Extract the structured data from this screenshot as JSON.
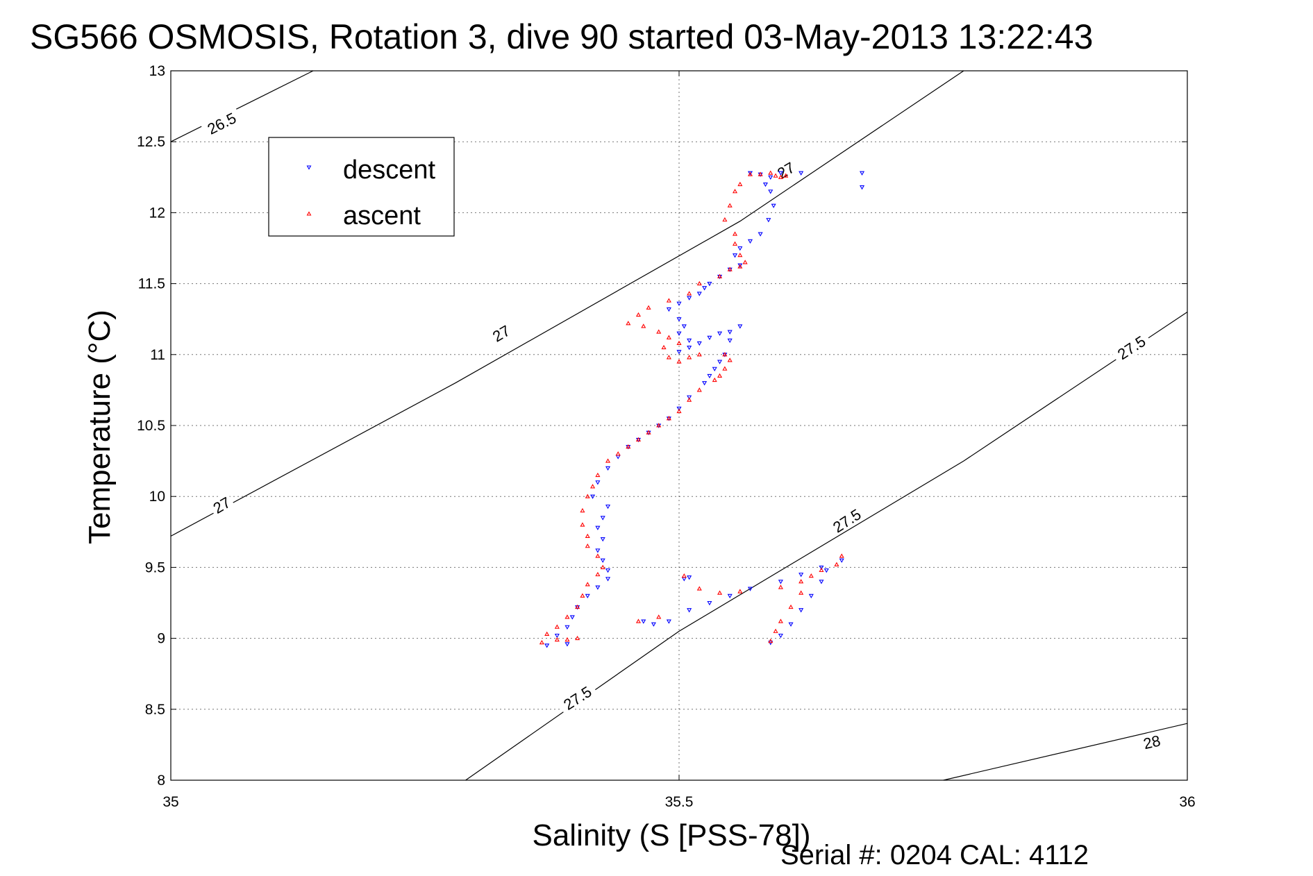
{
  "chart_data": {
    "type": "scatter",
    "title": "SG566 OSMOSIS, Rotation 3, dive 90 started 03-May-2013 13:22:43",
    "xlabel": "Salinity (S [PSS-78])",
    "ylabel": "Temperature (°C)",
    "xlim": [
      35,
      36
    ],
    "ylim": [
      8,
      13
    ],
    "x_ticks": [
      "35",
      "35.5",
      "36"
    ],
    "y_ticks": [
      "8",
      "8.5",
      "9",
      "9.5",
      "10",
      "10.5",
      "11",
      "11.5",
      "12",
      "12.5",
      "13"
    ],
    "grid": "dotted",
    "legend_position": "top-left",
    "footer": "Serial #: 0204  CAL: 4112",
    "density_contours": [
      {
        "label": "26.5",
        "points": [
          [
            35.0,
            12.5
          ],
          [
            35.14,
            13.0
          ]
        ]
      },
      {
        "label": "27",
        "points": [
          [
            35.0,
            9.72
          ],
          [
            35.28,
            10.8
          ],
          [
            35.56,
            11.94
          ],
          [
            35.78,
            13.0
          ]
        ]
      },
      {
        "label": "27.5",
        "points": [
          [
            35.29,
            8.0
          ],
          [
            35.5,
            9.05
          ],
          [
            35.78,
            10.25
          ],
          [
            36.0,
            11.3
          ]
        ]
      },
      {
        "label": "28",
        "points": [
          [
            35.76,
            8.0
          ],
          [
            36.0,
            8.4
          ]
        ]
      }
    ],
    "contour_label_positions": [
      {
        "label": "26.5",
        "x": 35.05,
        "y": 12.63
      },
      {
        "label": "27",
        "x": 35.05,
        "y": 9.94
      },
      {
        "label": "27",
        "x": 35.325,
        "y": 11.15
      },
      {
        "label": "27",
        "x": 35.605,
        "y": 12.3
      },
      {
        "label": "27.5",
        "x": 35.4,
        "y": 8.58
      },
      {
        "label": "27.5",
        "x": 35.665,
        "y": 9.83
      },
      {
        "label": "27.5",
        "x": 35.945,
        "y": 11.05
      },
      {
        "label": "28",
        "x": 35.965,
        "y": 8.27
      }
    ],
    "series": [
      {
        "name": "descent",
        "color": "#0000ff",
        "marker": "triangle-down",
        "points": [
          [
            35.68,
            12.18
          ],
          [
            35.68,
            12.28
          ],
          [
            35.57,
            12.28
          ],
          [
            35.6,
            12.28
          ],
          [
            35.62,
            12.28
          ],
          [
            35.58,
            12.27
          ],
          [
            35.59,
            12.25
          ],
          [
            35.585,
            12.2
          ],
          [
            35.59,
            12.15
          ],
          [
            35.593,
            12.05
          ],
          [
            35.588,
            11.95
          ],
          [
            35.58,
            11.85
          ],
          [
            35.57,
            11.8
          ],
          [
            35.56,
            11.75
          ],
          [
            35.555,
            11.7
          ],
          [
            35.56,
            11.63
          ],
          [
            35.55,
            11.6
          ],
          [
            35.54,
            11.55
          ],
          [
            35.53,
            11.5
          ],
          [
            35.525,
            11.47
          ],
          [
            35.52,
            11.43
          ],
          [
            35.51,
            11.4
          ],
          [
            35.5,
            11.36
          ],
          [
            35.49,
            11.32
          ],
          [
            35.5,
            11.25
          ],
          [
            35.505,
            11.2
          ],
          [
            35.5,
            11.15
          ],
          [
            35.51,
            11.1
          ],
          [
            35.52,
            11.08
          ],
          [
            35.51,
            11.05
          ],
          [
            35.5,
            11.02
          ],
          [
            35.53,
            11.12
          ],
          [
            35.54,
            11.15
          ],
          [
            35.55,
            11.16
          ],
          [
            35.56,
            11.2
          ],
          [
            35.55,
            11.1
          ],
          [
            35.545,
            11.0
          ],
          [
            35.54,
            10.95
          ],
          [
            35.535,
            10.9
          ],
          [
            35.53,
            10.85
          ],
          [
            35.525,
            10.8
          ],
          [
            35.51,
            10.7
          ],
          [
            35.5,
            10.62
          ],
          [
            35.49,
            10.55
          ],
          [
            35.48,
            10.5
          ],
          [
            35.47,
            10.45
          ],
          [
            35.46,
            10.4
          ],
          [
            35.45,
            10.35
          ],
          [
            35.44,
            10.28
          ],
          [
            35.43,
            10.2
          ],
          [
            35.42,
            10.1
          ],
          [
            35.415,
            10.0
          ],
          [
            35.43,
            9.93
          ],
          [
            35.425,
            9.85
          ],
          [
            35.42,
            9.78
          ],
          [
            35.425,
            9.7
          ],
          [
            35.42,
            9.62
          ],
          [
            35.425,
            9.55
          ],
          [
            35.43,
            9.48
          ],
          [
            35.43,
            9.42
          ],
          [
            35.42,
            9.36
          ],
          [
            35.41,
            9.3
          ],
          [
            35.4,
            9.22
          ],
          [
            35.395,
            9.15
          ],
          [
            35.39,
            9.08
          ],
          [
            35.38,
            9.02
          ],
          [
            35.37,
            8.95
          ],
          [
            35.39,
            8.96
          ],
          [
            35.465,
            9.12
          ],
          [
            35.475,
            9.1
          ],
          [
            35.49,
            9.12
          ],
          [
            35.51,
            9.2
          ],
          [
            35.53,
            9.25
          ],
          [
            35.55,
            9.3
          ],
          [
            35.57,
            9.35
          ],
          [
            35.6,
            9.4
          ],
          [
            35.62,
            9.45
          ],
          [
            35.64,
            9.5
          ],
          [
            35.66,
            9.55
          ],
          [
            35.645,
            9.48
          ],
          [
            35.64,
            9.4
          ],
          [
            35.63,
            9.3
          ],
          [
            35.62,
            9.2
          ],
          [
            35.61,
            9.1
          ],
          [
            35.6,
            9.02
          ],
          [
            35.59,
            8.97
          ],
          [
            35.505,
            9.42
          ],
          [
            35.51,
            9.43
          ]
        ]
      },
      {
        "name": "ascent",
        "color": "#ff0000",
        "marker": "triangle-up",
        "points": [
          [
            35.58,
            12.27
          ],
          [
            35.59,
            12.28
          ],
          [
            35.595,
            12.26
          ],
          [
            35.6,
            12.25
          ],
          [
            35.605,
            12.26
          ],
          [
            35.57,
            12.27
          ],
          [
            35.56,
            12.2
          ],
          [
            35.555,
            12.15
          ],
          [
            35.55,
            12.05
          ],
          [
            35.545,
            11.95
          ],
          [
            35.555,
            11.85
          ],
          [
            35.555,
            11.78
          ],
          [
            35.56,
            11.7
          ],
          [
            35.565,
            11.65
          ],
          [
            35.56,
            11.62
          ],
          [
            35.55,
            11.6
          ],
          [
            35.54,
            11.55
          ],
          [
            35.52,
            11.5
          ],
          [
            35.51,
            11.43
          ],
          [
            35.49,
            11.38
          ],
          [
            35.47,
            11.33
          ],
          [
            35.46,
            11.28
          ],
          [
            35.45,
            11.22
          ],
          [
            35.465,
            11.2
          ],
          [
            35.48,
            11.16
          ],
          [
            35.49,
            11.12
          ],
          [
            35.5,
            11.08
          ],
          [
            35.485,
            11.05
          ],
          [
            35.49,
            10.98
          ],
          [
            35.5,
            10.95
          ],
          [
            35.51,
            10.98
          ],
          [
            35.52,
            11.0
          ],
          [
            35.545,
            11.0
          ],
          [
            35.55,
            10.96
          ],
          [
            35.545,
            10.9
          ],
          [
            35.54,
            10.85
          ],
          [
            35.535,
            10.82
          ],
          [
            35.52,
            10.75
          ],
          [
            35.51,
            10.68
          ],
          [
            35.5,
            10.6
          ],
          [
            35.49,
            10.55
          ],
          [
            35.48,
            10.5
          ],
          [
            35.47,
            10.45
          ],
          [
            35.46,
            10.4
          ],
          [
            35.45,
            10.35
          ],
          [
            35.44,
            10.3
          ],
          [
            35.43,
            10.25
          ],
          [
            35.42,
            10.15
          ],
          [
            35.415,
            10.07
          ],
          [
            35.41,
            10.0
          ],
          [
            35.405,
            9.9
          ],
          [
            35.405,
            9.8
          ],
          [
            35.41,
            9.72
          ],
          [
            35.41,
            9.65
          ],
          [
            35.42,
            9.58
          ],
          [
            35.425,
            9.5
          ],
          [
            35.42,
            9.45
          ],
          [
            35.41,
            9.38
          ],
          [
            35.405,
            9.3
          ],
          [
            35.4,
            9.22
          ],
          [
            35.39,
            9.15
          ],
          [
            35.38,
            9.08
          ],
          [
            35.37,
            9.03
          ],
          [
            35.365,
            8.97
          ],
          [
            35.38,
            8.99
          ],
          [
            35.39,
            8.99
          ],
          [
            35.4,
            9.0
          ],
          [
            35.46,
            9.12
          ],
          [
            35.48,
            9.15
          ],
          [
            35.52,
            9.35
          ],
          [
            35.54,
            9.32
          ],
          [
            35.56,
            9.33
          ],
          [
            35.6,
            9.36
          ],
          [
            35.62,
            9.4
          ],
          [
            35.63,
            9.44
          ],
          [
            35.64,
            9.48
          ],
          [
            35.655,
            9.52
          ],
          [
            35.66,
            9.58
          ],
          [
            35.62,
            9.32
          ],
          [
            35.61,
            9.22
          ],
          [
            35.6,
            9.12
          ],
          [
            35.595,
            9.05
          ],
          [
            35.59,
            8.98
          ],
          [
            35.505,
            9.44
          ]
        ]
      }
    ]
  }
}
